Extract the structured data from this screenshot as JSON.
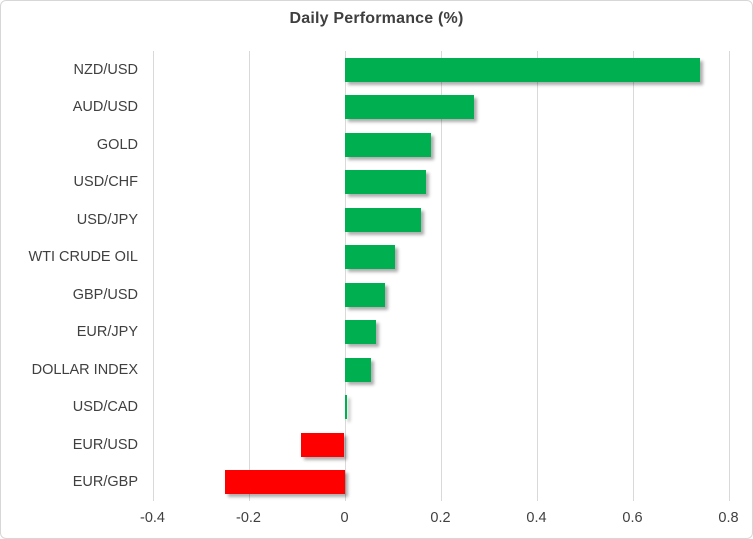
{
  "chart_data": {
    "type": "bar",
    "orientation": "horizontal",
    "title": "Daily Performance (%)",
    "categories": [
      "NZD/USD",
      "AUD/USD",
      "GOLD",
      "USD/CHF",
      "USD/JPY",
      "WTI CRUDE OIL",
      "GBP/USD",
      "EUR/JPY",
      "DOLLAR INDEX",
      "USD/CAD",
      "EUR/USD",
      "EUR/GBP"
    ],
    "values": [
      0.74,
      0.27,
      0.18,
      0.17,
      0.16,
      0.105,
      0.085,
      0.065,
      0.055,
      0.005,
      -0.09,
      -0.25
    ],
    "xlabel": "",
    "ylabel": "",
    "xlim": [
      -0.4,
      0.8
    ],
    "xticks": [
      -0.4,
      -0.2,
      0,
      0.2,
      0.4,
      0.6,
      0.8
    ],
    "xtick_labels": [
      "-0.4",
      "-0.2",
      "0",
      "0.2",
      "0.4",
      "0.6",
      "0.8"
    ],
    "grid": true,
    "legend_position": "none",
    "colors": {
      "positive": "#00B050",
      "negative": "#FF0000",
      "gridline": "#D9D9D9",
      "border": "#D7D7D7",
      "text": "#404040"
    }
  }
}
